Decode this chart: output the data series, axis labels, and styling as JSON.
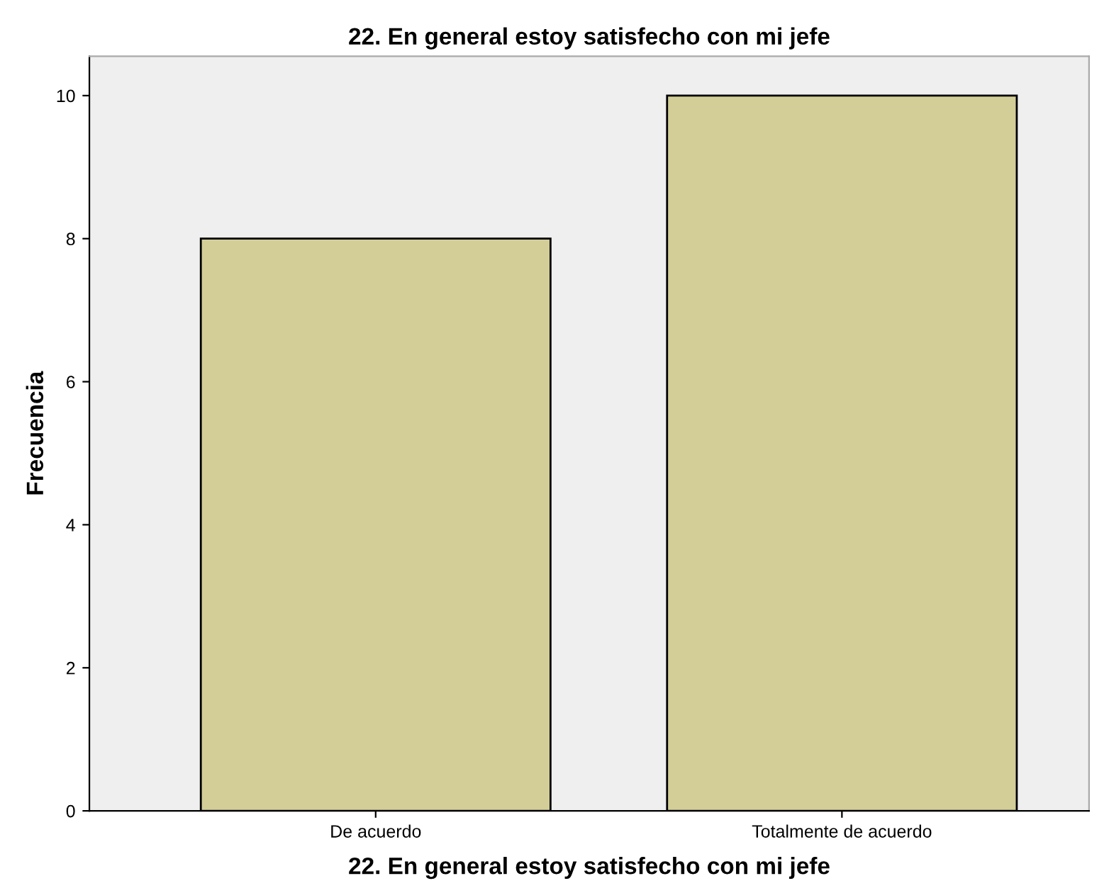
{
  "chart_data": {
    "type": "bar",
    "title": "22. En general estoy satisfecho con mi jefe",
    "xlabel": "22. En general estoy satisfecho con mi jefe",
    "ylabel": "Frecuencia",
    "categories": [
      "De acuerdo",
      "Totalmente de acuerdo"
    ],
    "values": [
      8,
      10
    ],
    "color": "#d3ce98",
    "ylim": [
      0,
      10.55
    ],
    "yticks": [
      0,
      2,
      4,
      6,
      8,
      10
    ],
    "grid": false,
    "legend": false
  }
}
